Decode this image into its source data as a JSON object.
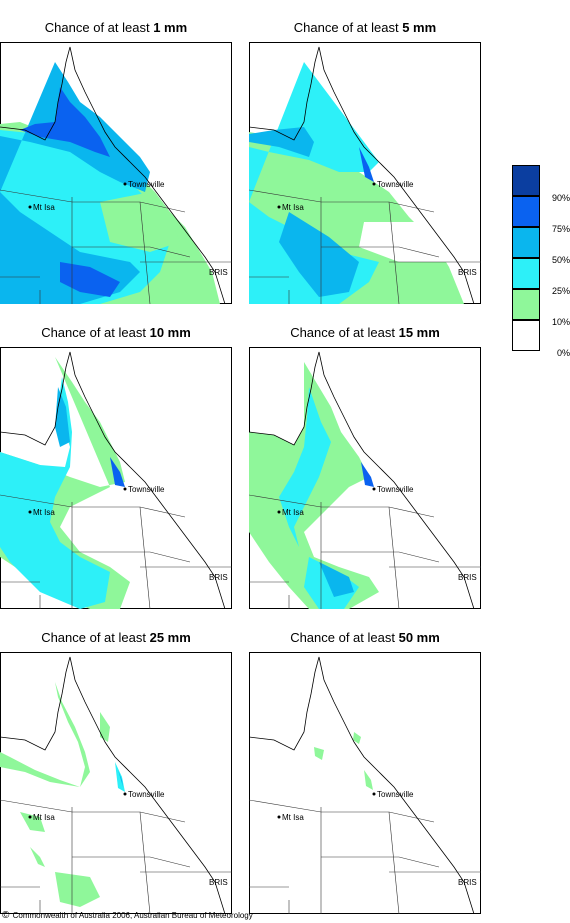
{
  "title_prefix": "Chance of at least",
  "panels": [
    {
      "amount": "1 mm"
    },
    {
      "amount": "5 mm"
    },
    {
      "amount": "10 mm"
    },
    {
      "amount": "15 mm"
    },
    {
      "amount": "25 mm"
    },
    {
      "amount": "50 mm"
    }
  ],
  "places": {
    "townsville": "Townsville",
    "mt_isa": "Mt Isa",
    "bris": "BRIS"
  },
  "legend": {
    "labels": [
      "90%",
      "75%",
      "50%",
      "25%",
      "10%",
      "0%"
    ],
    "colors": [
      "#0b3ea0",
      "#0a62f0",
      "#0ab6ee",
      "#2df0f8",
      "#8ff79a",
      "#ffffff"
    ]
  },
  "footer": {
    "symbol": "©",
    "text": "Commonwealth of Australia 2006, Australian Bureau of Meteorology"
  }
}
